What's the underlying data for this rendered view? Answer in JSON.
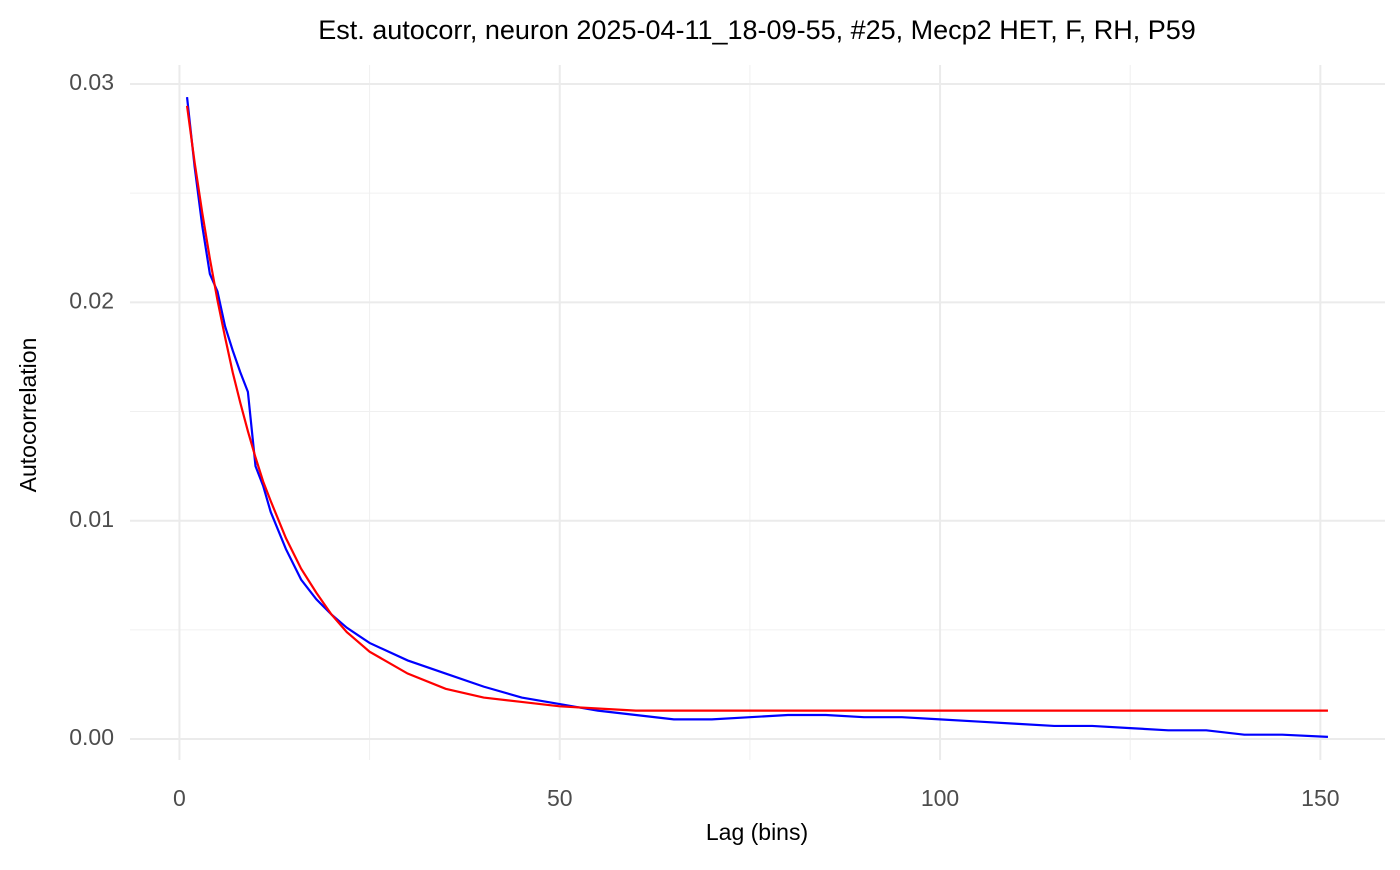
{
  "chart_data": {
    "type": "line",
    "title": "Est. autocorr, neuron 2025-04-11_18-09-55, #25, Mecp2 HET, F, RH, P59",
    "x_label": "Lag (bins)",
    "y_label": "Autocorrelation",
    "x": [
      1,
      2,
      3,
      4,
      5,
      6,
      7,
      8,
      9,
      10,
      11,
      12,
      14,
      16,
      18,
      20,
      22,
      25,
      30,
      35,
      40,
      45,
      50,
      55,
      60,
      65,
      70,
      75,
      80,
      85,
      90,
      95,
      100,
      105,
      110,
      115,
      120,
      125,
      130,
      135,
      140,
      145,
      151
    ],
    "series": [
      {
        "color": "#0000ff",
        "values": [
          0.0294,
          0.0262,
          0.0235,
          0.0213,
          0.0205,
          0.0189,
          0.0178,
          0.0168,
          0.0159,
          0.0125,
          0.0116,
          0.0104,
          0.0087,
          0.0073,
          0.0064,
          0.0057,
          0.0051,
          0.0044,
          0.0036,
          0.003,
          0.0024,
          0.0019,
          0.0016,
          0.0013,
          0.0011,
          0.0009,
          0.0009,
          0.001,
          0.0011,
          0.0011,
          0.001,
          0.001,
          0.0009,
          0.0008,
          0.0007,
          0.0006,
          0.0006,
          0.0005,
          0.0004,
          0.0004,
          0.0002,
          0.0002,
          0.0001
        ]
      },
      {
        "color": "#ff0000",
        "values": [
          0.029,
          0.0264,
          0.0241,
          0.022,
          0.0201,
          0.0184,
          0.0168,
          0.0154,
          0.0141,
          0.0129,
          0.0118,
          0.0109,
          0.0092,
          0.0078,
          0.0067,
          0.0057,
          0.0049,
          0.004,
          0.003,
          0.0023,
          0.0019,
          0.0017,
          0.0015,
          0.0014,
          0.0013,
          0.0013,
          0.0013,
          0.0013,
          0.0013,
          0.0013,
          0.0013,
          0.0013,
          0.0013,
          0.0013,
          0.0013,
          0.0013,
          0.0013,
          0.0013,
          0.0013,
          0.0013,
          0.0013,
          0.0013,
          0.0013
        ]
      }
    ],
    "xlim": [
      -6.5,
      158.5
    ],
    "ylim": [
      -0.00096,
      0.03087
    ],
    "xticks": [
      0,
      50,
      100,
      150
    ],
    "yticks": [
      {
        "value": 0,
        "label": "0.00"
      },
      {
        "value": 0.01,
        "label": "0.01"
      },
      {
        "value": 0.02,
        "label": "0.02"
      },
      {
        "value": 0.03,
        "label": "0.03"
      }
    ],
    "x_minor_grid": [
      25,
      75,
      125
    ],
    "y_minor_grid": [
      0.005,
      0.015,
      0.025
    ],
    "grid": true
  }
}
